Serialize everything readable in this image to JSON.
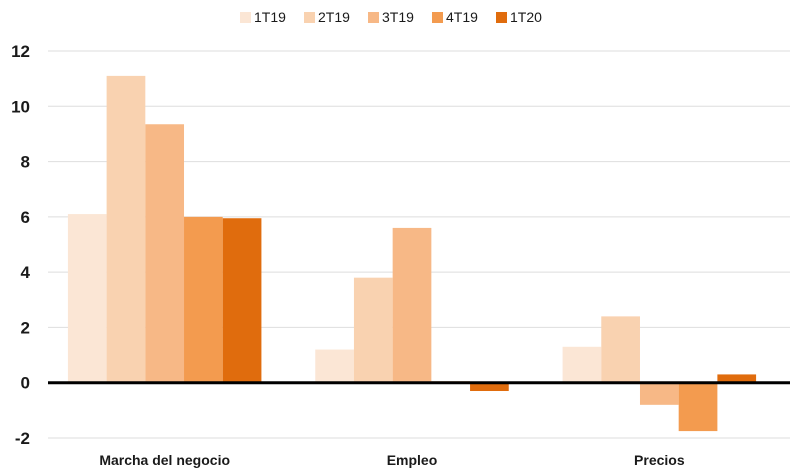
{
  "chart_data": {
    "type": "bar",
    "categories": [
      "Marcha del negocio",
      "Empleo",
      "Precios"
    ],
    "series": [
      {
        "name": "1T19",
        "color": "#fbe6d5",
        "values": [
          6.1,
          1.2,
          1.3
        ]
      },
      {
        "name": "2T19",
        "color": "#f9d2b0",
        "values": [
          11.1,
          3.8,
          2.4
        ]
      },
      {
        "name": "3T19",
        "color": "#f7b886",
        "values": [
          9.35,
          5.6,
          -0.8
        ]
      },
      {
        "name": "4T19",
        "color": "#f39b4f",
        "values": [
          6.0,
          0.05,
          -1.75
        ]
      },
      {
        "name": "1T20",
        "color": "#e06c0d",
        "values": [
          5.95,
          -0.3,
          0.3
        ]
      }
    ],
    "ylim": [
      -2,
      12
    ],
    "yticks": [
      "-2",
      "0",
      "2",
      "4",
      "6",
      "8",
      "10",
      "12"
    ],
    "ytick_values": [
      -2,
      0,
      2,
      4,
      6,
      8,
      10,
      12
    ],
    "grid": true,
    "legend_position": "top-center",
    "zero_line_color": "#000000",
    "grid_color": "#dedede"
  }
}
